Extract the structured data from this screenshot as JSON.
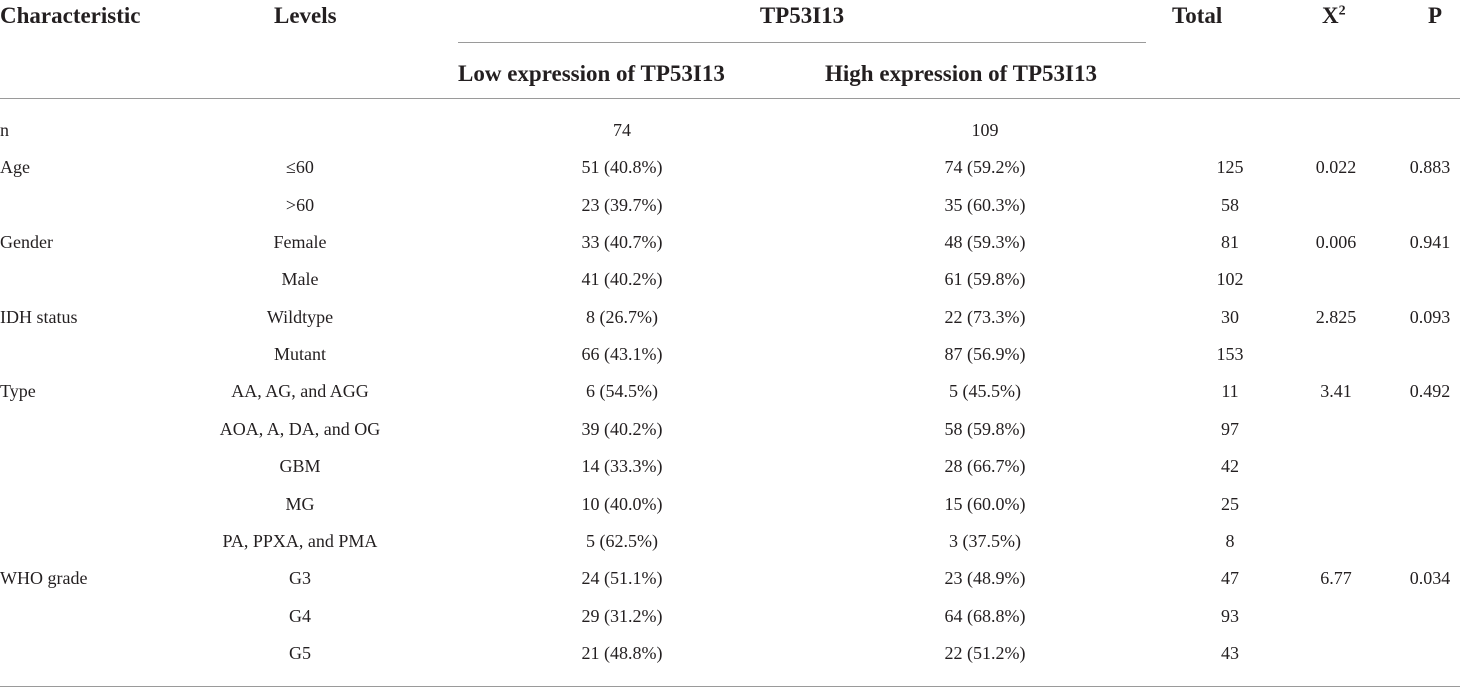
{
  "headers": {
    "characteristic": "Characteristic",
    "levels": "Levels",
    "group": "TP53I13",
    "low": "Low expression of TP53I13",
    "high": "High expression of TP53I13",
    "total": "Total",
    "chi_base": "X",
    "chi_sup": "2",
    "p": "P"
  },
  "rows": [
    {
      "characteristic": "n",
      "level": "",
      "low": "74",
      "high": "109",
      "total": "",
      "chi2": "",
      "p": ""
    },
    {
      "characteristic": "Age",
      "level": "≤60",
      "low": "51 (40.8%)",
      "high": "74 (59.2%)",
      "total": "125",
      "chi2": "0.022",
      "p": "0.883"
    },
    {
      "characteristic": "",
      "level": ">60",
      "low": "23 (39.7%)",
      "high": "35 (60.3%)",
      "total": "58",
      "chi2": "",
      "p": ""
    },
    {
      "characteristic": "Gender",
      "level": "Female",
      "low": "33 (40.7%)",
      "high": "48 (59.3%)",
      "total": "81",
      "chi2": "0.006",
      "p": "0.941"
    },
    {
      "characteristic": "",
      "level": "Male",
      "low": "41 (40.2%)",
      "high": "61 (59.8%)",
      "total": "102",
      "chi2": "",
      "p": ""
    },
    {
      "characteristic": "IDH status",
      "level": "Wildtype",
      "low": "8 (26.7%)",
      "high": "22 (73.3%)",
      "total": "30",
      "chi2": "2.825",
      "p": "0.093"
    },
    {
      "characteristic": "",
      "level": "Mutant",
      "low": "66 (43.1%)",
      "high": "87 (56.9%)",
      "total": "153",
      "chi2": "",
      "p": ""
    },
    {
      "characteristic": "Type",
      "level": "AA, AG, and AGG",
      "low": "6 (54.5%)",
      "high": "5 (45.5%)",
      "total": "11",
      "chi2": "3.41",
      "p": "0.492"
    },
    {
      "characteristic": "",
      "level": "AOA, A, DA, and OG",
      "low": "39 (40.2%)",
      "high": "58 (59.8%)",
      "total": "97",
      "chi2": "",
      "p": ""
    },
    {
      "characteristic": "",
      "level": "GBM",
      "low": "14 (33.3%)",
      "high": "28 (66.7%)",
      "total": "42",
      "chi2": "",
      "p": ""
    },
    {
      "characteristic": "",
      "level": "MG",
      "low": "10 (40.0%)",
      "high": "15 (60.0%)",
      "total": "25",
      "chi2": "",
      "p": ""
    },
    {
      "characteristic": "",
      "level": "PA, PPXA, and PMA",
      "low": "5 (62.5%)",
      "high": "3 (37.5%)",
      "total": "8",
      "chi2": "",
      "p": ""
    },
    {
      "characteristic": "WHO grade",
      "level": "G3",
      "low": "24 (51.1%)",
      "high": "23 (48.9%)",
      "total": "47",
      "chi2": "6.77",
      "p": "0.034"
    },
    {
      "characteristic": "",
      "level": "G4",
      "low": "29 (31.2%)",
      "high": "64 (68.8%)",
      "total": "93",
      "chi2": "",
      "p": ""
    },
    {
      "characteristic": "",
      "level": "G5",
      "low": "21 (48.8%)",
      "high": "22 (51.2%)",
      "total": "43",
      "chi2": "",
      "p": ""
    }
  ]
}
